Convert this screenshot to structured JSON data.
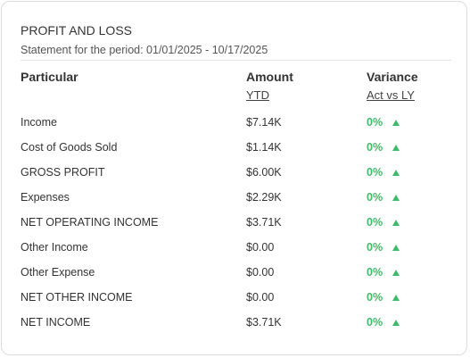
{
  "header": {
    "title": "PROFIT AND LOSS",
    "subtitle": "Statement for the period: 01/01/2025 - 10/17/2025"
  },
  "table": {
    "columns": [
      {
        "label": "Particular"
      },
      {
        "label": "Amount",
        "sublabel": "YTD"
      },
      {
        "label": "Variance",
        "sublabel": "Act vs LY"
      }
    ],
    "rows": [
      [
        "Income",
        "$7.14K",
        "0%"
      ],
      [
        "Cost of Goods Sold",
        "$1.14K",
        "0%"
      ],
      [
        "GROSS PROFIT",
        "$6.00K",
        "0%"
      ],
      [
        "Expenses",
        "$2.29K",
        "0%"
      ],
      [
        "NET OPERATING INCOME",
        "$3.71K",
        "0%"
      ],
      [
        "Other Income",
        "$0.00",
        "0%"
      ],
      [
        "Other Expense",
        "$0.00",
        "0%"
      ],
      [
        "NET OTHER INCOME",
        "$0.00",
        "0%"
      ],
      [
        "NET INCOME",
        "$3.71K",
        "0%"
      ]
    ]
  }
}
